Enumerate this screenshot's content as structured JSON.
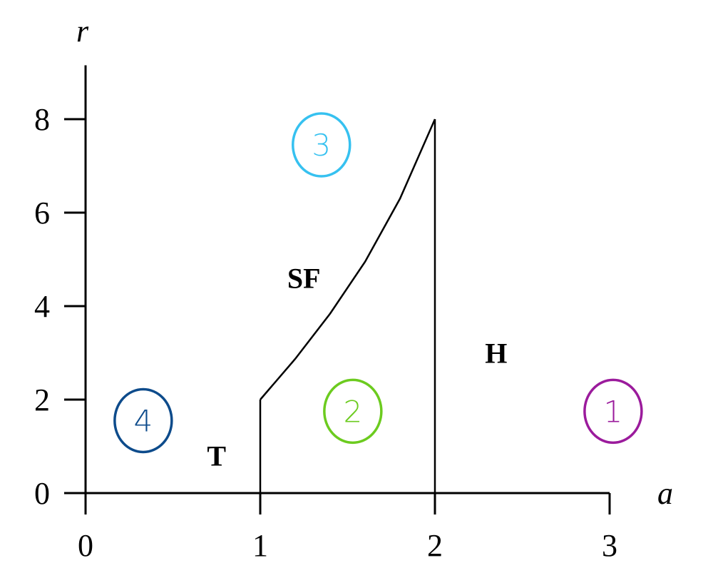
{
  "chart_data": {
    "type": "line",
    "xlabel": "a",
    "ylabel": "r",
    "xlim": [
      0,
      3
    ],
    "ylim": [
      0,
      9
    ],
    "x_ticks": [
      "0",
      "1",
      "2",
      "3"
    ],
    "y_ticks": [
      "0",
      "2",
      "4",
      "6",
      "8"
    ],
    "grid": false,
    "curves": [
      {
        "x": [
          1,
          1
        ],
        "y": [
          0,
          2
        ]
      },
      {
        "x": [
          1,
          1.2,
          1.4,
          1.6,
          1.8,
          2
        ],
        "y": [
          2,
          2.87,
          3.84,
          4.95,
          6.3,
          8
        ]
      },
      {
        "x": [
          2,
          2
        ],
        "y": [
          0,
          8
        ]
      }
    ],
    "regions": [
      {
        "label": "T",
        "x": 0.75,
        "y": 0.8
      },
      {
        "label": "SF",
        "x": 1.25,
        "y": 4.6
      },
      {
        "label": "H",
        "x": 2.35,
        "y": 3.0
      }
    ],
    "annotations": [
      {
        "text": "1",
        "x": 3.02,
        "y": 1.75,
        "color": "#9b1b9c"
      },
      {
        "text": "2",
        "x": 1.53,
        "y": 1.75,
        "color": "#6ccb1f"
      },
      {
        "text": "3",
        "x": 1.35,
        "y": 7.45,
        "color": "#36c1f0"
      },
      {
        "text": "4",
        "x": 0.33,
        "y": 1.55,
        "color": "#0d4b8b"
      }
    ]
  }
}
